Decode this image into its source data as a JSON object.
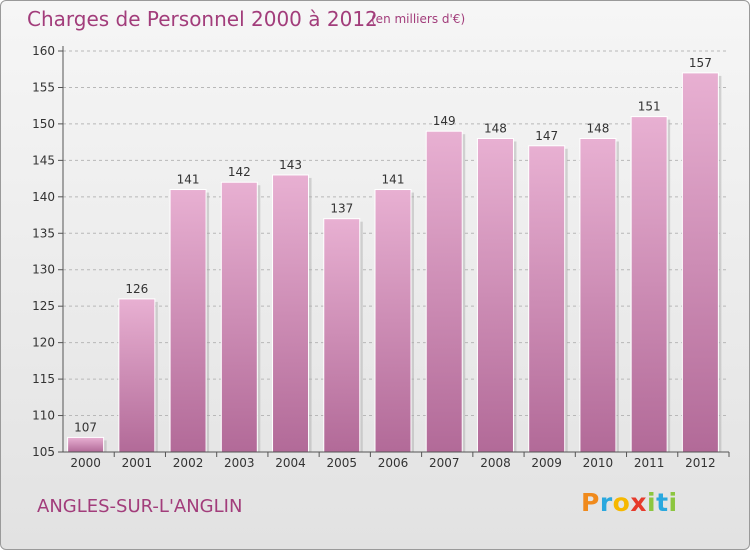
{
  "header": {
    "title": "Charges de Personnel 2000 à 2012",
    "subtitle": "(en milliers d'€)"
  },
  "footer": {
    "commune": "ANGLES-SUR-L'ANGLIN",
    "logo_letters": [
      "P",
      "r",
      "o",
      "x",
      "i",
      "t",
      "i"
    ],
    "logo_colors": [
      "#f08a1c",
      "#2aa8de",
      "#f6b800",
      "#e63a2b",
      "#8cc63f",
      "#2aa8de",
      "#8cc63f"
    ]
  },
  "colors": {
    "bar": "#d08ab4",
    "bar_light": "#e8b0d2",
    "bar_dark": "#b26a98",
    "text": "#a23d7b",
    "grid": "#b8b8b8"
  },
  "chart_data": {
    "type": "bar",
    "title": "Charges de Personnel 2000 à 2012",
    "subtitle": "(en milliers d'€)",
    "xlabel": "",
    "ylabel": "",
    "categories": [
      "2000",
      "2001",
      "2002",
      "2003",
      "2004",
      "2005",
      "2006",
      "2007",
      "2008",
      "2009",
      "2010",
      "2011",
      "2012"
    ],
    "values": [
      107,
      126,
      141,
      142,
      143,
      137,
      141,
      149,
      148,
      147,
      148,
      151,
      157
    ],
    "ylim": [
      105,
      160
    ],
    "yticks": [
      105,
      110,
      115,
      120,
      125,
      130,
      135,
      140,
      145,
      150,
      155,
      160
    ],
    "grid": "horizontal dashed"
  }
}
